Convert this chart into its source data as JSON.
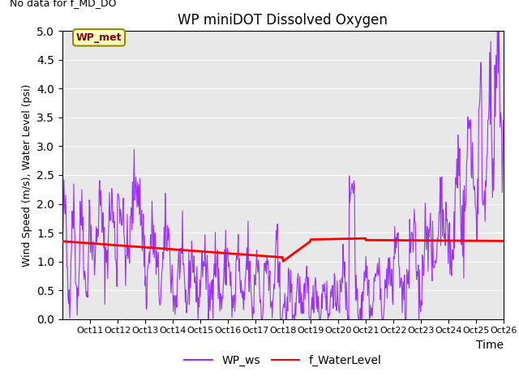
{
  "title": "WP miniDOT Dissolved Oxygen",
  "top_left_text": "No data for f_MD_DO",
  "ylabel": "Wind Speed (m/s), Water Level (psi)",
  "xlabel": "Time",
  "ylim": [
    0.0,
    5.0
  ],
  "yticks": [
    0.0,
    0.5,
    1.0,
    1.5,
    2.0,
    2.5,
    3.0,
    3.5,
    4.0,
    4.5,
    5.0
  ],
  "xtick_labels": [
    "Oct 11",
    "Oct 12",
    "Oct 13",
    "Oct 14",
    "Oct 15",
    "Oct 16",
    "Oct 17",
    "Oct 18",
    "Oct 19",
    "Oct 20",
    "Oct 21",
    "Oct 22",
    "Oct 23",
    "Oct 24",
    "Oct 25",
    "Oct 26"
  ],
  "legend_labels": [
    "WP_ws",
    "f_WaterLevel"
  ],
  "inset_label": "WP_met",
  "inset_bg": "#FFFFC0",
  "inset_border": "#8B8B00",
  "inset_text_color": "#8B0000",
  "bg_color": "#E8E8E8",
  "line_ws_color": "#9B30FF",
  "line_wl_color": "#FF0000",
  "ws_linewidth": 0.8,
  "wl_linewidth": 2.0,
  "grid_color": "#FFFFFF",
  "title_fontsize": 12,
  "ylabel_fontsize": 9,
  "xlabel_fontsize": 10,
  "tick_fontsize": 8,
  "legend_fontsize": 10
}
